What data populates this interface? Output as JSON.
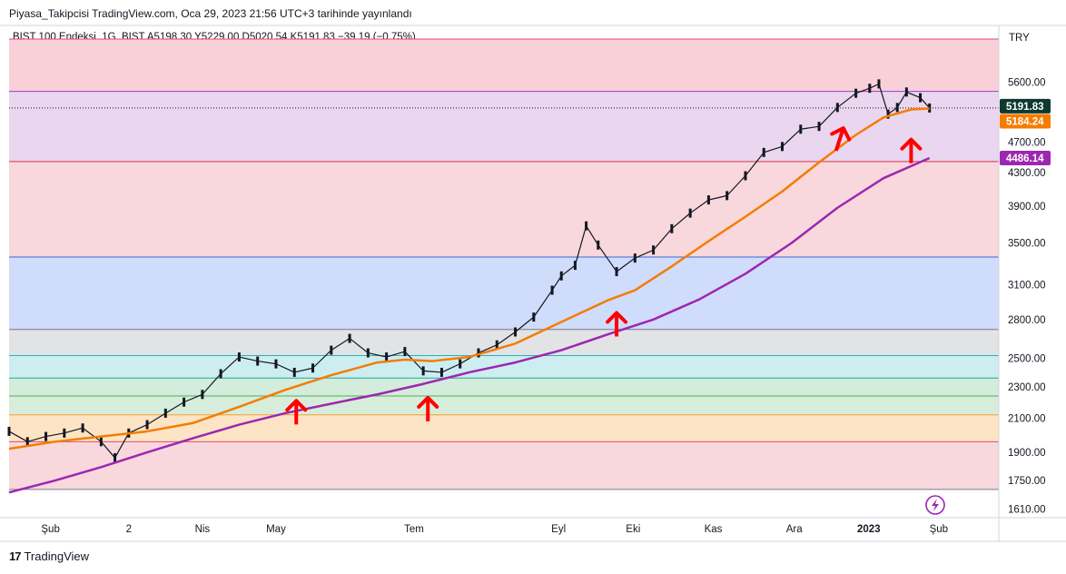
{
  "header": {
    "published": "Piyasa_Takipcisi TradingView.com, Oca 29, 2023 21:56 UTC+3 tarihinde yayınlandı",
    "symbol_line": "BIST 100 Endeksi, 1G, BIST  A5198.30  Y5229.00  D5020.54  K5191.83  −39.19 (−0.75%)"
  },
  "footer": {
    "brand": "TradingView"
  },
  "icons": {
    "lightning": "lightning-icon",
    "tv_logo": "tradingview-logo-icon"
  },
  "chart_data": {
    "type": "line",
    "currency": "TRY",
    "y_scale": "log",
    "ylim": [
      1570,
      6400
    ],
    "y_ticks": [
      5600,
      4700,
      4300,
      3900,
      3500,
      3100,
      2800,
      2500,
      2300,
      2100,
      1900,
      1750,
      1610
    ],
    "x_tick_labels": [
      "Şub",
      "2",
      "Nis",
      "May",
      "Tem",
      "Eyl",
      "Eki",
      "Kas",
      "Ara",
      "2023",
      "Şub"
    ],
    "x_tick_fracs": [
      0.045,
      0.13,
      0.21,
      0.29,
      0.44,
      0.597,
      0.678,
      0.765,
      0.853,
      0.934,
      1.01
    ],
    "bands": [
      {
        "from": 5450,
        "to": 6350,
        "color": "#f8d0d8"
      },
      {
        "from": 4440,
        "to": 5450,
        "color": "#ead6ef"
      },
      {
        "from": 3360,
        "to": 4440,
        "color": "#f8d8dc"
      },
      {
        "from": 2720,
        "to": 3360,
        "color": "#d0dcfb"
      },
      {
        "from": 2520,
        "to": 2720,
        "color": "#e2e3e5"
      },
      {
        "from": 2360,
        "to": 2520,
        "color": "#cdeef0"
      },
      {
        "from": 2240,
        "to": 2360,
        "color": "#d3ecdc"
      },
      {
        "from": 2120,
        "to": 2240,
        "color": "#d7eddb"
      },
      {
        "from": 1960,
        "to": 2120,
        "color": "#fde4c4"
      },
      {
        "from": 1705,
        "to": 1960,
        "color": "#f8d8dc"
      }
    ],
    "band_lines": [
      {
        "value": 6350,
        "color": "#e04a6a"
      },
      {
        "value": 5450,
        "color": "#9a3cc0"
      },
      {
        "value": 4440,
        "color": "#d8344e"
      },
      {
        "value": 3360,
        "color": "#3a66d8"
      },
      {
        "value": 2720,
        "color": "#787b86"
      },
      {
        "value": 2520,
        "color": "#26b3bf"
      },
      {
        "value": 2360,
        "color": "#26a69a"
      },
      {
        "value": 2240,
        "color": "#4caf50"
      },
      {
        "value": 2120,
        "color": "#f0a030"
      },
      {
        "value": 1960,
        "color": "#e04a6a"
      },
      {
        "value": 1705,
        "color": "#787b86"
      }
    ],
    "price_series": {
      "name": "BIST 100 Endeksi",
      "color": "#131722",
      "x": [
        0,
        0.02,
        0.04,
        0.06,
        0.08,
        0.1,
        0.115,
        0.13,
        0.15,
        0.17,
        0.19,
        0.21,
        0.23,
        0.25,
        0.27,
        0.29,
        0.31,
        0.33,
        0.35,
        0.37,
        0.39,
        0.41,
        0.43,
        0.45,
        0.47,
        0.49,
        0.51,
        0.53,
        0.55,
        0.57,
        0.59,
        0.6,
        0.615,
        0.627,
        0.64,
        0.66,
        0.68,
        0.7,
        0.72,
        0.74,
        0.76,
        0.78,
        0.8,
        0.82,
        0.84,
        0.86,
        0.88,
        0.9,
        0.92,
        0.935,
        0.945,
        0.955,
        0.965,
        0.975,
        0.99,
        1.0
      ],
      "values": [
        2020,
        1960,
        1990,
        2010,
        2040,
        1960,
        1870,
        2010,
        2060,
        2130,
        2200,
        2250,
        2390,
        2510,
        2480,
        2460,
        2400,
        2430,
        2560,
        2650,
        2540,
        2510,
        2550,
        2410,
        2400,
        2460,
        2540,
        2600,
        2700,
        2820,
        3050,
        3180,
        3280,
        3680,
        3480,
        3220,
        3350,
        3430,
        3650,
        3820,
        3970,
        4020,
        4260,
        4560,
        4640,
        4880,
        4920,
        5200,
        5420,
        5500,
        5570,
        5100,
        5200,
        5440,
        5350,
        5191.83
      ]
    },
    "ma_short": {
      "color": "#f57c00",
      "x": [
        0,
        0.05,
        0.1,
        0.15,
        0.2,
        0.25,
        0.3,
        0.35,
        0.4,
        0.43,
        0.46,
        0.5,
        0.55,
        0.6,
        0.65,
        0.68,
        0.72,
        0.76,
        0.8,
        0.84,
        0.88,
        0.92,
        0.95,
        0.98,
        1.0
      ],
      "values": [
        1920,
        1960,
        1990,
        2020,
        2070,
        2170,
        2280,
        2380,
        2470,
        2490,
        2480,
        2510,
        2610,
        2780,
        2960,
        3050,
        3270,
        3520,
        3780,
        4070,
        4430,
        4800,
        5050,
        5170,
        5184.24
      ]
    },
    "ma_long": {
      "color": "#9c27b0",
      "x": [
        0,
        0.05,
        0.1,
        0.15,
        0.2,
        0.25,
        0.3,
        0.35,
        0.4,
        0.45,
        0.5,
        0.55,
        0.6,
        0.65,
        0.7,
        0.75,
        0.8,
        0.85,
        0.9,
        0.95,
        1.0
      ],
      "values": [
        1690,
        1750,
        1820,
        1900,
        1980,
        2060,
        2130,
        2190,
        2250,
        2320,
        2400,
        2470,
        2560,
        2680,
        2800,
        2970,
        3200,
        3500,
        3880,
        4230,
        4486.14
      ]
    },
    "last_price": {
      "value": 5191.83,
      "label": "5191.83",
      "color": "#0d3a30"
    },
    "ma_short_tag": {
      "value": 5184.24,
      "label": "5184.24",
      "color": "#f57c00"
    },
    "ma_long_tag": {
      "value": 4486.14,
      "label": "4486.14",
      "color": "#9c27b0"
    },
    "arrows": [
      {
        "x": 0.312,
        "tip": 2220,
        "angle": 0
      },
      {
        "x": 0.455,
        "tip": 2240,
        "angle": 0
      },
      {
        "x": 0.66,
        "tip": 2870,
        "angle": 0
      },
      {
        "x": 0.907,
        "tip": 4920,
        "angle": 18
      },
      {
        "x": 0.98,
        "tip": 4760,
        "angle": 0
      }
    ],
    "arrow_color": "#ff0000"
  }
}
